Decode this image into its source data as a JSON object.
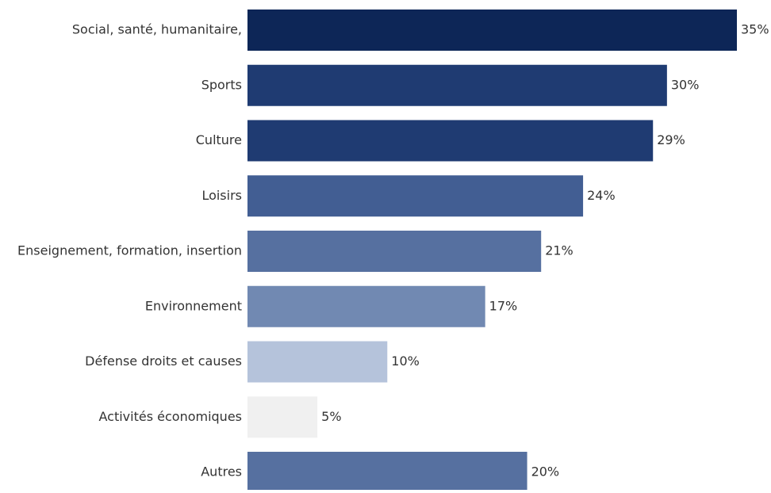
{
  "chart_data": {
    "type": "bar",
    "orientation": "horizontal",
    "title": "",
    "xlabel": "",
    "ylabel": "",
    "grid": false,
    "legend": "none",
    "xlim": [
      0,
      35
    ],
    "categories": [
      "Social, santé, humanitaire,",
      "Sports",
      "Culture",
      "Loisirs",
      "Enseignement, formation, insertion",
      "Environnement",
      "Défense droits et causes",
      "Activités économiques",
      "Autres"
    ],
    "values": [
      35,
      30,
      29,
      24,
      21,
      17,
      10,
      5,
      20
    ],
    "data_labels": [
      "35%",
      "30%",
      "29%",
      "24%",
      "21%",
      "17%",
      "10%",
      "5%",
      "20%"
    ],
    "colors": [
      "#0d2657",
      "#1f3b72",
      "#1f3b72",
      "#425e93",
      "#5670a0",
      "#7189b2",
      "#b5c3db",
      "#f0f0f0",
      "#5670a0"
    ]
  }
}
